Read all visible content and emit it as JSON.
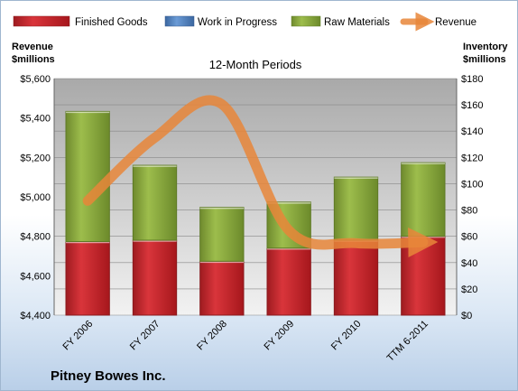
{
  "chart_data": {
    "type": "bar",
    "title": "12-Month Periods",
    "company": "Pitney Bowes Inc.",
    "categories": [
      "FY 2006",
      "FY 2007",
      "FY 2008",
      "FY 2009",
      "FY 2010",
      "TTM 6-2011"
    ],
    "stacked": true,
    "left_axis": {
      "label_line1": "Revenue",
      "label_line2": "$millions",
      "range": [
        4400,
        5600
      ],
      "step": 200,
      "ticks": [
        "$4,400",
        "$4,600",
        "$4,800",
        "$5,000",
        "$5,200",
        "$5,400",
        "$5,600"
      ]
    },
    "right_axis": {
      "label_line1": "Inventory",
      "label_line2": "$millions",
      "range": [
        0,
        180
      ],
      "step": 20,
      "ticks": [
        "$0",
        "$20",
        "$40",
        "$60",
        "$80",
        "$100",
        "$120",
        "$140",
        "$160",
        "$180"
      ]
    },
    "series": [
      {
        "name": "Finished Goods",
        "axis": "right",
        "kind": "bar",
        "color": "#c0272d",
        "values": [
          56,
          57,
          41,
          51,
          57,
          60
        ]
      },
      {
        "name": "Work in Progress",
        "axis": "right",
        "kind": "bar",
        "color": "#4f81bd",
        "values": [
          0,
          0,
          0,
          0,
          0,
          0
        ]
      },
      {
        "name": "Raw Materials",
        "axis": "right",
        "kind": "bar",
        "color": "#8cac3e",
        "values": [
          99,
          57,
          41,
          35,
          48,
          56
        ]
      },
      {
        "name": "Revenue",
        "axis": "left",
        "kind": "line",
        "color": "#e8863a",
        "values": [
          4980,
          5300,
          5470,
          4830,
          4765,
          4770
        ]
      }
    ],
    "legend_position": "top",
    "grid": true
  }
}
